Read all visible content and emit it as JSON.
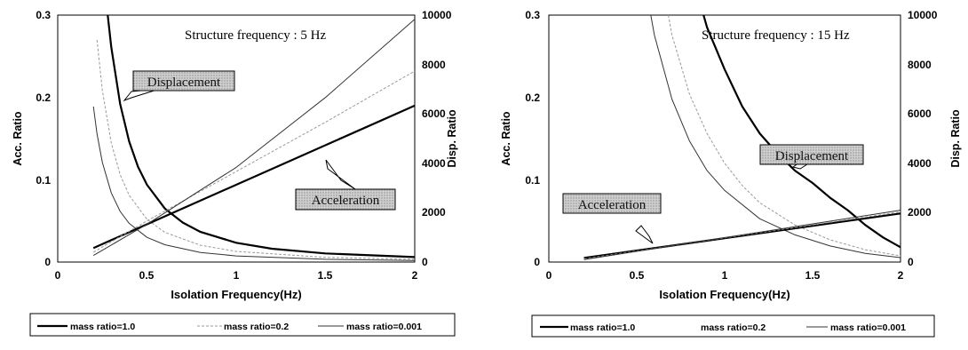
{
  "chart_data": [
    {
      "type": "line",
      "title": "Structure frequency : 5 Hz",
      "xlabel": "Isolation Frequency(Hz)",
      "ylabel_left": "Acc. Ratio",
      "ylabel_right": "Disp. Ratio",
      "xlim": [
        0,
        2
      ],
      "ylim_left": [
        0,
        0.3
      ],
      "ylim_right": [
        0,
        10000
      ],
      "xticks": [
        "0",
        "0.5",
        "1",
        "1.5",
        "2"
      ],
      "yticks_left": [
        "0",
        "0.1",
        "0.2",
        "0.3"
      ],
      "yticks_right": [
        "0",
        "2000",
        "4000",
        "6000",
        "8000",
        "10000"
      ],
      "grid": false,
      "legend": "bottom",
      "series": [
        {
          "name": "mass ratio=1.0",
          "quantity": "Displacement",
          "axis": "right",
          "x": [
            0.28,
            0.3,
            0.35,
            0.4,
            0.45,
            0.5,
            0.6,
            0.7,
            0.8,
            1.0,
            1.2,
            1.5,
            2.0
          ],
          "values": [
            10000,
            8700,
            6400,
            4890,
            3860,
            3130,
            2170,
            1600,
            1220,
            780,
            540,
            350,
            200
          ]
        },
        {
          "name": "mass ratio=0.2",
          "quantity": "Displacement",
          "axis": "right",
          "x": [
            0.22,
            0.25,
            0.3,
            0.35,
            0.4,
            0.5,
            0.6,
            0.8,
            1.0,
            1.5,
            2.0
          ],
          "values": [
            9000,
            6940,
            4820,
            3540,
            2710,
            1730,
            1200,
            680,
            430,
            190,
            110
          ]
        },
        {
          "name": "mass ratio=0.001",
          "quantity": "Displacement",
          "axis": "right",
          "x": [
            0.2,
            0.22,
            0.25,
            0.3,
            0.35,
            0.4,
            0.5,
            0.6,
            0.8,
            1.0,
            1.5,
            2.0
          ],
          "values": [
            6300,
            5200,
            4030,
            2800,
            2050,
            1570,
            1000,
            700,
            390,
            250,
            110,
            60
          ]
        },
        {
          "name": "mass ratio=1.0",
          "quantity": "Acceleration",
          "axis": "left",
          "x": [
            0.2,
            2.0
          ],
          "values": [
            0.017,
            0.19
          ]
        },
        {
          "name": "mass ratio=0.2",
          "quantity": "Acceleration",
          "axis": "left",
          "x": [
            0.2,
            0.5,
            1.0,
            1.5,
            2.0
          ],
          "values": [
            0.012,
            0.05,
            0.11,
            0.17,
            0.232
          ]
        },
        {
          "name": "mass ratio=0.001",
          "quantity": "Acceleration",
          "axis": "left",
          "x": [
            0.2,
            0.5,
            1.0,
            1.5,
            2.0
          ],
          "values": [
            0.008,
            0.046,
            0.115,
            0.2,
            0.295
          ]
        }
      ],
      "annotations": [
        "Displacement",
        "Acceleration"
      ]
    },
    {
      "type": "line",
      "title": "Structure frequency : 15 Hz",
      "xlabel": "Isolation Frequency(Hz)",
      "ylabel_left": "Acc. Ratio",
      "ylabel_right": "Disp. Ratio",
      "xlim": [
        0,
        2
      ],
      "ylim_left": [
        0,
        0.3
      ],
      "ylim_right": [
        0,
        10000
      ],
      "xticks": [
        "0",
        "0.5",
        "1",
        "1.5",
        "2"
      ],
      "yticks_left": [
        "0",
        "0.1",
        "0.2",
        "0.3"
      ],
      "yticks_right": [
        "0",
        "2000",
        "4000",
        "6000",
        "8000",
        "10000"
      ],
      "grid": false,
      "legend": "bottom",
      "series": [
        {
          "name": "mass ratio=1.0",
          "quantity": "Displacement",
          "axis": "right",
          "x": [
            0.88,
            0.9,
            1.0,
            1.1,
            1.2,
            1.3,
            1.4,
            1.5,
            1.6,
            1.7,
            1.8,
            1.9,
            2.0
          ],
          "values": [
            10000,
            9500,
            7800,
            6300,
            5200,
            4400,
            3700,
            3200,
            2600,
            2100,
            1500,
            1000,
            600
          ]
        },
        {
          "name": "mass ratio=0.2",
          "quantity": "Displacement",
          "axis": "right",
          "x": [
            0.68,
            0.7,
            0.8,
            0.9,
            1.0,
            1.1,
            1.2,
            1.4,
            1.6,
            1.8,
            2.0
          ],
          "values": [
            10000,
            9200,
            6800,
            5200,
            4000,
            3100,
            2400,
            1500,
            900,
            500,
            250
          ]
        },
        {
          "name": "mass ratio=0.001",
          "quantity": "Displacement",
          "axis": "right",
          "x": [
            0.58,
            0.6,
            0.7,
            0.8,
            0.9,
            1.0,
            1.2,
            1.4,
            1.6,
            1.8,
            2.0
          ],
          "values": [
            10000,
            9200,
            6600,
            4900,
            3700,
            2900,
            1750,
            1100,
            650,
            350,
            180
          ]
        },
        {
          "name": "mass ratio=1.0",
          "quantity": "Acceleration",
          "axis": "left",
          "x": [
            0.2,
            2.0
          ],
          "values": [
            0.005,
            0.059
          ]
        },
        {
          "name": "mass ratio=0.2",
          "quantity": "Acceleration",
          "axis": "left",
          "x": [
            0.2,
            2.0
          ],
          "values": [
            0.004,
            0.061
          ]
        },
        {
          "name": "mass ratio=0.001",
          "quantity": "Acceleration",
          "axis": "left",
          "x": [
            0.2,
            2.0
          ],
          "values": [
            0.003,
            0.063
          ]
        }
      ],
      "annotations": [
        "Displacement",
        "Acceleration"
      ]
    }
  ],
  "legend_styles": [
    {
      "label": "mass ratio=1.0",
      "color": "#000000"
    },
    {
      "label": "mass ratio=0.2",
      "color": "#999999"
    },
    {
      "label": "mass ratio=0.001",
      "color": "#333333"
    }
  ]
}
